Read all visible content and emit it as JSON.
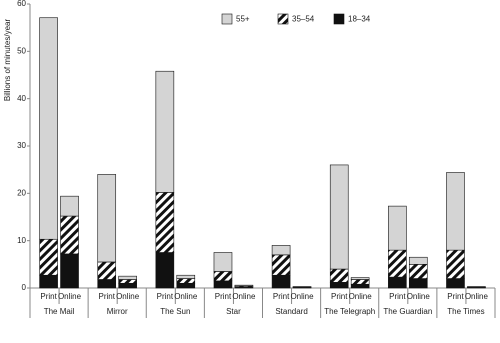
{
  "chart_data": {
    "type": "stacked_bar",
    "y_label": "Billions of minutes/year",
    "groups": [
      "The Mail",
      "Mirror",
      "The Sun",
      "Star",
      "Standard",
      "The Telegraph",
      "The Guardian",
      "The Times"
    ],
    "categories": [
      "Print",
      "Online",
      "Print",
      "Online",
      "Print",
      "Online",
      "Print",
      "Online",
      "Print",
      "Online",
      "Print",
      "Online",
      "Print",
      "Online",
      "Print",
      "Online"
    ],
    "series": [
      {
        "name": "55+",
        "color": "#d4d4d4",
        "values": [
          46.8,
          4.2,
          18.5,
          0.7,
          25.6,
          0.7,
          4.0,
          0.2,
          2.0,
          0.1,
          22.0,
          0.4,
          9.3,
          1.5,
          16.4,
          0.1
        ]
      },
      {
        "name": "35–54",
        "color": "#ffffff",
        "pattern": "hatch",
        "values": [
          7.6,
          8.0,
          3.7,
          0.8,
          12.7,
          1.0,
          2.0,
          0.2,
          4.3,
          0.1,
          2.8,
          1.0,
          5.7,
          3.0,
          6.0,
          0.1
        ]
      },
      {
        "name": "18–34",
        "color": "#111111",
        "values": [
          2.7,
          7.2,
          1.8,
          1.0,
          7.5,
          1.0,
          1.5,
          0.2,
          2.7,
          0.1,
          1.2,
          0.8,
          2.3,
          2.0,
          2.0,
          0.1
        ]
      }
    ],
    "stack_order": "bottom-up from last series",
    "ylim": [
      0,
      60
    ],
    "yticks": [
      0,
      10,
      20,
      30,
      40,
      50,
      60
    ],
    "legend": "top"
  }
}
